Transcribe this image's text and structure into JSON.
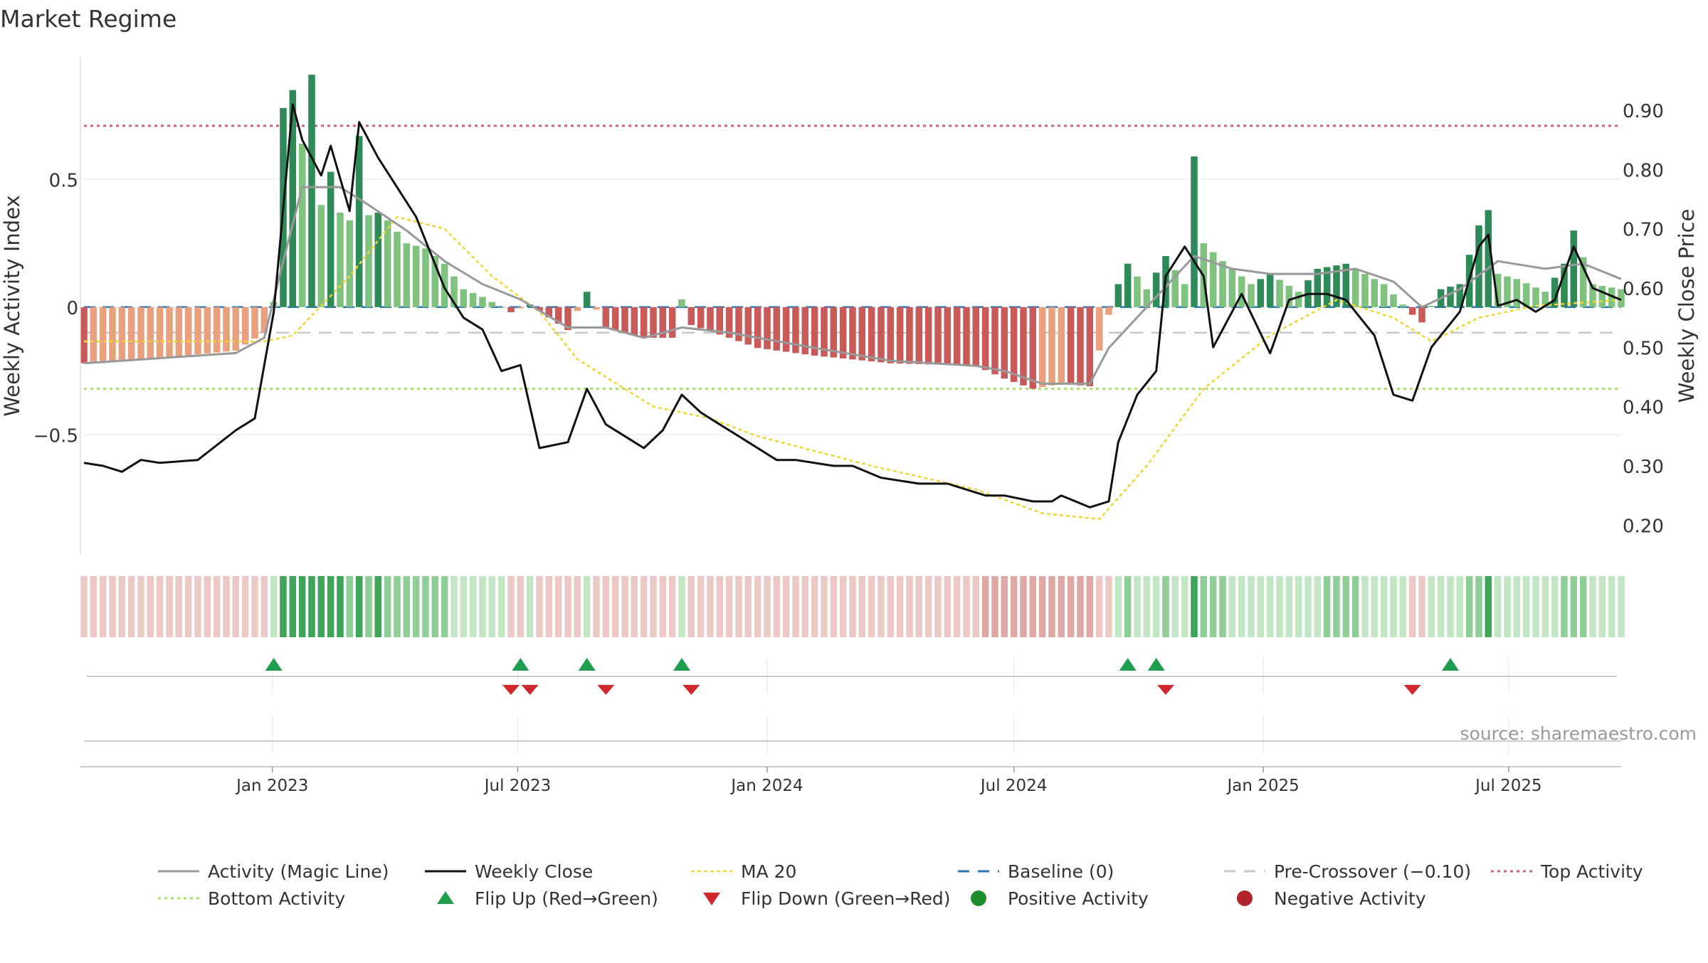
{
  "page_title": "Market Regime",
  "source_note": "source: sharemaestro.com",
  "colors": {
    "strong_green": "#2e8b57",
    "light_green": "#7fc17f",
    "strong_red": "#c85a5a",
    "light_red": "#e8a07f",
    "magic_line": "#999999",
    "close": "#111111",
    "ma20": "#f0d632",
    "baseline": "#2e75b6",
    "pre_crossover": "#c8c8c8",
    "top_activity": "#d06080",
    "bottom_activity": "#a8e070",
    "flip_up": "#1e9e4e",
    "flip_down": "#d0282d",
    "positive": "#1f8c2f",
    "negative": "#b0242a"
  },
  "chart_data": {
    "type": "bar",
    "title": "Market Regime",
    "ylabel_left": "Weekly Activity Index",
    "ylabel_right": "Weekly Close Price",
    "yticks_left": [
      {
        "v": 0.5,
        "label": "0.5"
      },
      {
        "v": 0,
        "label": "0"
      },
      {
        "v": -0.5,
        "label": "−0.5"
      }
    ],
    "yticks_right": [
      {
        "v": 0.9,
        "label": "0.90"
      },
      {
        "v": 0.8,
        "label": "0.80"
      },
      {
        "v": 0.7,
        "label": "0.70"
      },
      {
        "v": 0.6,
        "label": "0.60"
      },
      {
        "v": 0.5,
        "label": "0.50"
      },
      {
        "v": 0.4,
        "label": "0.40"
      },
      {
        "v": 0.3,
        "label": "0.30"
      },
      {
        "v": 0.2,
        "label": "0.20"
      }
    ],
    "ylim_left": [
      -0.97,
      0.98
    ],
    "ylim_right": [
      0.15,
      0.99
    ],
    "x_start": "2022-08-15",
    "x_end": "2025-09-22",
    "xticks": [
      {
        "date": "2023-01-01",
        "label": "Jan 2023"
      },
      {
        "date": "2023-07-01",
        "label": "Jul 2023"
      },
      {
        "date": "2024-01-01",
        "label": "Jan 2024"
      },
      {
        "date": "2024-07-01",
        "label": "Jul 2024"
      },
      {
        "date": "2025-01-01",
        "label": "Jan 2025"
      },
      {
        "date": "2025-07-01",
        "label": "Jul 2025"
      }
    ],
    "activity_anchors": [
      [
        "2022-08-15",
        -0.22
      ],
      [
        "2022-10-10",
        -0.2
      ],
      [
        "2022-12-05",
        -0.17
      ],
      [
        "2022-12-26",
        -0.1
      ],
      [
        "2023-01-02",
        0.02
      ],
      [
        "2023-01-09",
        0.78
      ],
      [
        "2023-01-16",
        0.85
      ],
      [
        "2023-01-23",
        0.64
      ],
      [
        "2023-01-30",
        0.91
      ],
      [
        "2023-02-06",
        0.4
      ],
      [
        "2023-02-13",
        0.53
      ],
      [
        "2023-02-20",
        0.37
      ],
      [
        "2023-02-27",
        0.34
      ],
      [
        "2023-03-06",
        0.67
      ],
      [
        "2023-03-13",
        0.36
      ],
      [
        "2023-03-20",
        0.37
      ],
      [
        "2023-03-27",
        0.34
      ],
      [
        "2023-04-10",
        0.25
      ],
      [
        "2023-04-24",
        0.23
      ],
      [
        "2023-05-08",
        0.17
      ],
      [
        "2023-05-22",
        0.07
      ],
      [
        "2023-06-05",
        0.04
      ],
      [
        "2023-06-19",
        0.0
      ],
      [
        "2023-06-26",
        -0.02
      ],
      [
        "2023-07-10",
        0.01
      ],
      [
        "2023-07-24",
        -0.04
      ],
      [
        "2023-08-07",
        -0.09
      ],
      [
        "2023-08-21",
        0.06
      ],
      [
        "2023-09-04",
        -0.08
      ],
      [
        "2023-10-02",
        -0.12
      ],
      [
        "2023-10-23",
        -0.12
      ],
      [
        "2023-10-30",
        0.03
      ],
      [
        "2023-11-06",
        -0.07
      ],
      [
        "2023-12-04",
        -0.12
      ],
      [
        "2023-12-25",
        -0.16
      ],
      [
        "2024-02-05",
        -0.19
      ],
      [
        "2024-04-01",
        -0.22
      ],
      [
        "2024-06-03",
        -0.23
      ],
      [
        "2024-06-24",
        -0.28
      ],
      [
        "2024-07-15",
        -0.32
      ],
      [
        "2024-08-05",
        -0.3
      ],
      [
        "2024-08-26",
        -0.31
      ],
      [
        "2024-09-09",
        -0.03
      ],
      [
        "2024-09-16",
        0.09
      ],
      [
        "2024-09-23",
        0.17
      ],
      [
        "2024-10-07",
        0.07
      ],
      [
        "2024-10-21",
        0.2
      ],
      [
        "2024-11-04",
        0.09
      ],
      [
        "2024-11-11",
        0.59
      ],
      [
        "2024-11-18",
        0.25
      ],
      [
        "2024-12-02",
        0.18
      ],
      [
        "2024-12-23",
        0.09
      ],
      [
        "2025-01-06",
        0.13
      ],
      [
        "2025-01-27",
        0.06
      ],
      [
        "2025-02-10",
        0.15
      ],
      [
        "2025-03-03",
        0.17
      ],
      [
        "2025-03-31",
        0.09
      ],
      [
        "2025-04-14",
        0.01
      ],
      [
        "2025-04-21",
        -0.03
      ],
      [
        "2025-04-28",
        -0.06
      ],
      [
        "2025-05-12",
        0.07
      ],
      [
        "2025-05-26",
        0.09
      ],
      [
        "2025-06-09",
        0.32
      ],
      [
        "2025-06-16",
        0.38
      ],
      [
        "2025-06-23",
        0.13
      ],
      [
        "2025-07-07",
        0.11
      ],
      [
        "2025-07-28",
        0.06
      ],
      [
        "2025-08-11",
        0.17
      ],
      [
        "2025-08-18",
        0.3
      ],
      [
        "2025-09-01",
        0.09
      ],
      [
        "2025-09-22",
        0.07
      ]
    ],
    "magic_anchors": [
      [
        "2022-08-15",
        -0.22
      ],
      [
        "2022-10-10",
        -0.2
      ],
      [
        "2022-12-05",
        -0.18
      ],
      [
        "2022-12-26",
        -0.12
      ],
      [
        "2023-01-09",
        0.18
      ],
      [
        "2023-01-23",
        0.47
      ],
      [
        "2023-02-20",
        0.47
      ],
      [
        "2023-03-13",
        0.4
      ],
      [
        "2023-04-10",
        0.3
      ],
      [
        "2023-05-08",
        0.18
      ],
      [
        "2023-06-05",
        0.09
      ],
      [
        "2023-07-03",
        0.03
      ],
      [
        "2023-08-07",
        -0.08
      ],
      [
        "2023-09-04",
        -0.08
      ],
      [
        "2023-10-02",
        -0.12
      ],
      [
        "2023-10-30",
        -0.08
      ],
      [
        "2023-12-04",
        -0.1
      ],
      [
        "2024-02-05",
        -0.16
      ],
      [
        "2024-04-01",
        -0.21
      ],
      [
        "2024-06-03",
        -0.23
      ],
      [
        "2024-06-24",
        -0.25
      ],
      [
        "2024-07-22",
        -0.3
      ],
      [
        "2024-08-26",
        -0.3
      ],
      [
        "2024-09-09",
        -0.16
      ],
      [
        "2024-10-07",
        0.0
      ],
      [
        "2024-11-11",
        0.2
      ],
      [
        "2024-12-09",
        0.15
      ],
      [
        "2025-01-06",
        0.13
      ],
      [
        "2025-02-10",
        0.13
      ],
      [
        "2025-03-10",
        0.15
      ],
      [
        "2025-04-07",
        0.1
      ],
      [
        "2025-04-28",
        0.0
      ],
      [
        "2025-05-26",
        0.07
      ],
      [
        "2025-06-23",
        0.18
      ],
      [
        "2025-07-28",
        0.15
      ],
      [
        "2025-08-25",
        0.17
      ],
      [
        "2025-09-22",
        0.11
      ]
    ],
    "close_anchors": [
      [
        "2022-08-15",
        0.305
      ],
      [
        "2022-08-29",
        0.3
      ],
      [
        "2022-09-12",
        0.29
      ],
      [
        "2022-09-26",
        0.31
      ],
      [
        "2022-10-10",
        0.305
      ],
      [
        "2022-11-07",
        0.31
      ],
      [
        "2022-12-05",
        0.36
      ],
      [
        "2022-12-19",
        0.38
      ],
      [
        "2023-01-02",
        0.56
      ],
      [
        "2023-01-16",
        0.91
      ],
      [
        "2023-01-23",
        0.85
      ],
      [
        "2023-02-06",
        0.79
      ],
      [
        "2023-02-13",
        0.84
      ],
      [
        "2023-02-27",
        0.73
      ],
      [
        "2023-03-06",
        0.88
      ],
      [
        "2023-03-20",
        0.82
      ],
      [
        "2023-04-17",
        0.72
      ],
      [
        "2023-05-08",
        0.6
      ],
      [
        "2023-05-22",
        0.55
      ],
      [
        "2023-06-05",
        0.53
      ],
      [
        "2023-06-19",
        0.46
      ],
      [
        "2023-07-03",
        0.47
      ],
      [
        "2023-07-17",
        0.33
      ],
      [
        "2023-08-07",
        0.34
      ],
      [
        "2023-08-21",
        0.43
      ],
      [
        "2023-09-04",
        0.37
      ],
      [
        "2023-09-18",
        0.35
      ],
      [
        "2023-10-02",
        0.33
      ],
      [
        "2023-10-16",
        0.36
      ],
      [
        "2023-10-30",
        0.42
      ],
      [
        "2023-11-13",
        0.39
      ],
      [
        "2023-11-27",
        0.37
      ],
      [
        "2023-12-11",
        0.35
      ],
      [
        "2024-01-08",
        0.31
      ],
      [
        "2024-01-22",
        0.31
      ],
      [
        "2024-02-19",
        0.3
      ],
      [
        "2024-03-04",
        0.3
      ],
      [
        "2024-03-25",
        0.28
      ],
      [
        "2024-04-22",
        0.27
      ],
      [
        "2024-05-13",
        0.27
      ],
      [
        "2024-06-10",
        0.25
      ],
      [
        "2024-06-24",
        0.25
      ],
      [
        "2024-07-15",
        0.24
      ],
      [
        "2024-07-29",
        0.24
      ],
      [
        "2024-08-05",
        0.25
      ],
      [
        "2024-08-26",
        0.23
      ],
      [
        "2024-09-09",
        0.24
      ],
      [
        "2024-09-16",
        0.34
      ],
      [
        "2024-09-30",
        0.42
      ],
      [
        "2024-10-14",
        0.46
      ],
      [
        "2024-10-21",
        0.62
      ],
      [
        "2024-11-04",
        0.67
      ],
      [
        "2024-11-18",
        0.62
      ],
      [
        "2024-11-25",
        0.5
      ],
      [
        "2024-12-09",
        0.56
      ],
      [
        "2024-12-16",
        0.59
      ],
      [
        "2025-01-06",
        0.49
      ],
      [
        "2025-01-20",
        0.58
      ],
      [
        "2025-02-03",
        0.59
      ],
      [
        "2025-02-17",
        0.59
      ],
      [
        "2025-03-03",
        0.58
      ],
      [
        "2025-03-24",
        0.52
      ],
      [
        "2025-04-07",
        0.42
      ],
      [
        "2025-04-21",
        0.41
      ],
      [
        "2025-05-05",
        0.5
      ],
      [
        "2025-05-26",
        0.56
      ],
      [
        "2025-06-09",
        0.67
      ],
      [
        "2025-06-16",
        0.69
      ],
      [
        "2025-06-23",
        0.57
      ],
      [
        "2025-07-07",
        0.58
      ],
      [
        "2025-07-21",
        0.56
      ],
      [
        "2025-08-04",
        0.58
      ],
      [
        "2025-08-18",
        0.67
      ],
      [
        "2025-09-01",
        0.6
      ],
      [
        "2025-09-22",
        0.58
      ]
    ],
    "ma20_anchors": [
      [
        "2022-08-15",
        0.51
      ],
      [
        "2022-12-26",
        0.51
      ],
      [
        "2023-01-16",
        0.52
      ],
      [
        "2023-02-27",
        0.62
      ],
      [
        "2023-04-03",
        0.72
      ],
      [
        "2023-05-08",
        0.7
      ],
      [
        "2023-06-12",
        0.62
      ],
      [
        "2023-07-17",
        0.56
      ],
      [
        "2023-08-14",
        0.48
      ],
      [
        "2023-10-09",
        0.4
      ],
      [
        "2023-11-20",
        0.38
      ],
      [
        "2023-12-25",
        0.35
      ],
      [
        "2024-03-18",
        0.3
      ],
      [
        "2024-06-03",
        0.26
      ],
      [
        "2024-07-22",
        0.22
      ],
      [
        "2024-09-02",
        0.21
      ],
      [
        "2024-10-07",
        0.3
      ],
      [
        "2024-11-18",
        0.43
      ],
      [
        "2025-01-06",
        0.52
      ],
      [
        "2025-02-24",
        0.58
      ],
      [
        "2025-04-07",
        0.55
      ],
      [
        "2025-05-05",
        0.51
      ],
      [
        "2025-06-09",
        0.55
      ],
      [
        "2025-07-21",
        0.57
      ],
      [
        "2025-09-22",
        0.58
      ]
    ],
    "reference_lines": {
      "baseline": 0,
      "pre_crossover": -0.1,
      "top_activity": 0.71,
      "bottom_activity": -0.32
    },
    "flip_up_dates": [
      "2023-01-02",
      "2023-07-03",
      "2023-08-21",
      "2023-10-30",
      "2024-09-23",
      "2024-10-14",
      "2025-05-19"
    ],
    "flip_down_dates": [
      "2023-06-26",
      "2023-07-10",
      "2023-09-04",
      "2023-11-06",
      "2024-10-21",
      "2025-04-21"
    ],
    "legend": [
      {
        "label": "Activity (Magic Line)",
        "kind": "line-gray"
      },
      {
        "label": "Weekly Close",
        "kind": "line-black"
      },
      {
        "label": "MA 20",
        "kind": "dotted-yellow"
      },
      {
        "label": "Baseline (0)",
        "kind": "dashed-blue"
      },
      {
        "label": "Pre-Crossover (−0.10)",
        "kind": "dashed-gray"
      },
      {
        "label": "Top Activity",
        "kind": "dotted-pink"
      },
      {
        "label": "Bottom Activity",
        "kind": "dotted-green"
      },
      {
        "label": "Flip Up (Red→Green)",
        "kind": "tri-up"
      },
      {
        "label": "Flip Down (Green→Red)",
        "kind": "tri-down"
      },
      {
        "label": "Positive Activity",
        "kind": "dot-green"
      },
      {
        "label": "Negative Activity",
        "kind": "dot-red"
      }
    ],
    "legend_placement": "bottom"
  }
}
